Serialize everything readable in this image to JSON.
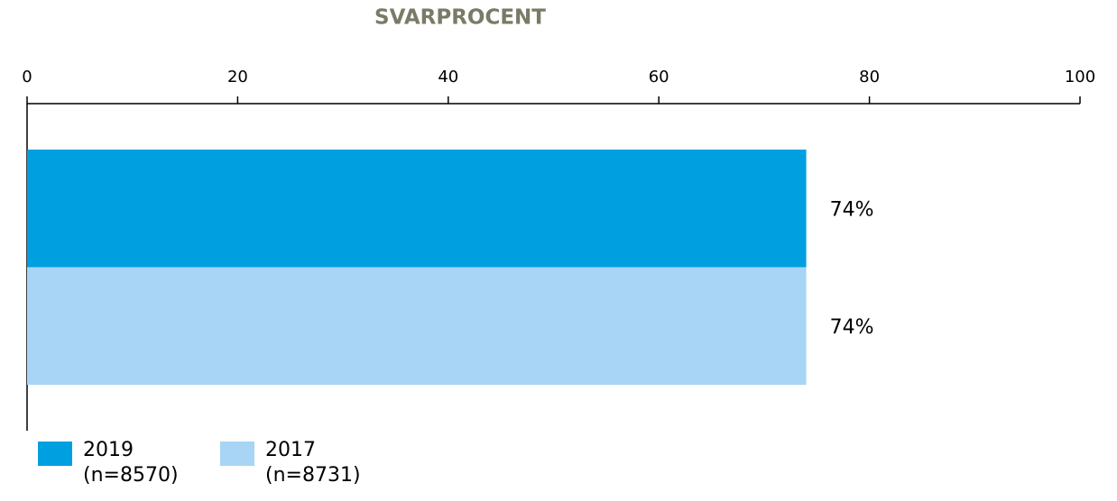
{
  "chart_data": {
    "type": "bar",
    "orientation": "horizontal",
    "title": "SVARPROCENT",
    "categories": [
      null
    ],
    "series": [
      {
        "name": "2019 (n=8570)",
        "color": "#009fe0",
        "values": [
          74
        ],
        "value_labels": [
          "74%"
        ]
      },
      {
        "name": "2017 (n=8731)",
        "color": "#a8d4f5",
        "values": [
          74
        ],
        "value_labels": [
          "74%"
        ]
      }
    ],
    "xlim": [
      0,
      100
    ],
    "xticks": [
      0,
      20,
      40,
      60,
      80,
      100
    ],
    "grid": false,
    "legend": "bottom-left"
  }
}
